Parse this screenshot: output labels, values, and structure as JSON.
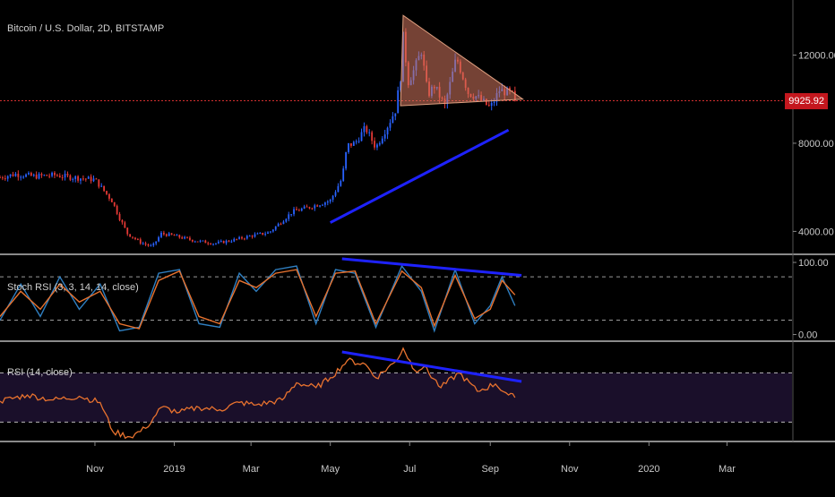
{
  "chart_data": [
    {
      "type": "candlestick",
      "title": "Bitcoin / U.S. Dollar, 2D, BITSTAMP",
      "y_ticks": [
        "12000.00",
        "8000.00",
        "4000.00"
      ],
      "y_tick_values": [
        12000,
        8000,
        4000
      ],
      "ylim": [
        3000,
        14500
      ],
      "current_price": "9925.92",
      "current_price_value": 9925.92,
      "x_labels": [
        "Nov",
        "2019",
        "Mar",
        "May",
        "Jul",
        "Sep",
        "Nov",
        "2020",
        "Mar"
      ],
      "x_label_dates": [
        "2018-11-01",
        "2019-01-01",
        "2019-03-01",
        "2019-05-01",
        "2019-07-01",
        "2019-09-01",
        "2019-11-01",
        "2020-01-01",
        "2020-03-01"
      ],
      "x_range": [
        "2018-08-20",
        "2020-04-20"
      ],
      "series": [
        {
          "close_points": [
            [
              "2018-08-20",
              6450
            ],
            [
              "2018-09-01",
              6600
            ],
            [
              "2018-09-15",
              6500
            ],
            [
              "2018-10-01",
              6550
            ],
            [
              "2018-10-15",
              6450
            ],
            [
              "2018-11-01",
              6350
            ],
            [
              "2018-11-14",
              5400
            ],
            [
              "2018-11-20",
              4600
            ],
            [
              "2018-11-26",
              3900
            ],
            [
              "2018-12-06",
              3500
            ],
            [
              "2018-12-15",
              3300
            ],
            [
              "2018-12-22",
              3900
            ],
            [
              "2019-01-01",
              3800
            ],
            [
              "2019-01-15",
              3600
            ],
            [
              "2019-02-01",
              3450
            ],
            [
              "2019-02-15",
              3600
            ],
            [
              "2019-03-01",
              3800
            ],
            [
              "2019-03-15",
              3950
            ],
            [
              "2019-04-02",
              4900
            ],
            [
              "2019-04-15",
              5100
            ],
            [
              "2019-05-01",
              5400
            ],
            [
              "2019-05-10",
              6400
            ],
            [
              "2019-05-14",
              7900
            ],
            [
              "2019-05-20",
              8000
            ],
            [
              "2019-05-28",
              8700
            ],
            [
              "2019-06-05",
              7800
            ],
            [
              "2019-06-15",
              8900
            ],
            [
              "2019-06-20",
              9500
            ],
            [
              "2019-06-24",
              11000
            ],
            [
              "2019-06-26",
              12800
            ],
            [
              "2019-06-30",
              10800
            ],
            [
              "2019-07-05",
              11400
            ],
            [
              "2019-07-10",
              12200
            ],
            [
              "2019-07-15",
              10200
            ],
            [
              "2019-07-20",
              10600
            ],
            [
              "2019-07-28",
              9700
            ],
            [
              "2019-08-06",
              11900
            ],
            [
              "2019-08-15",
              10300
            ],
            [
              "2019-08-22",
              10100
            ],
            [
              "2019-09-01",
              9600
            ],
            [
              "2019-09-08",
              10400
            ],
            [
              "2019-09-15",
              10300
            ],
            [
              "2019-09-18",
              10200
            ],
            [
              "2019-09-20",
              9925.92
            ]
          ]
        }
      ],
      "annotations": {
        "triangle": [
          [
            "2019-06-26",
            13800
          ],
          [
            "2019-06-24",
            9700
          ],
          [
            "2019-09-26",
            10000
          ]
        ],
        "support_line": [
          [
            "2019-05-01",
            4400
          ],
          [
            "2019-09-15",
            8600
          ]
        ]
      }
    },
    {
      "type": "line",
      "label": "Stoch RSI (3, 3, 14, 14, close)",
      "y_ticks": [
        "100.00",
        "0.00"
      ],
      "y_tick_values": [
        100,
        0
      ],
      "ylim": [
        -8,
        110
      ],
      "bands": [
        80,
        20
      ],
      "series": [
        {
          "color": "#2f7fc1",
          "points": [
            [
              "2018-08-20",
              20
            ],
            [
              "2018-09-05",
              70
            ],
            [
              "2018-09-20",
              25
            ],
            [
              "2018-10-05",
              80
            ],
            [
              "2018-10-20",
              35
            ],
            [
              "2018-11-05",
              70
            ],
            [
              "2018-11-20",
              5
            ],
            [
              "2018-12-05",
              10
            ],
            [
              "2018-12-20",
              85
            ],
            [
              "2019-01-05",
              90
            ],
            [
              "2019-01-20",
              15
            ],
            [
              "2019-02-05",
              10
            ],
            [
              "2019-02-20",
              85
            ],
            [
              "2019-03-05",
              60
            ],
            [
              "2019-03-20",
              90
            ],
            [
              "2019-04-05",
              95
            ],
            [
              "2019-04-20",
              15
            ],
            [
              "2019-05-05",
              90
            ],
            [
              "2019-05-20",
              85
            ],
            [
              "2019-06-05",
              10
            ],
            [
              "2019-06-25",
              95
            ],
            [
              "2019-07-10",
              60
            ],
            [
              "2019-07-20",
              5
            ],
            [
              "2019-08-05",
              90
            ],
            [
              "2019-08-20",
              15
            ],
            [
              "2019-09-01",
              40
            ],
            [
              "2019-09-10",
              80
            ],
            [
              "2019-09-20",
              40
            ]
          ]
        },
        {
          "color": "#e8722e",
          "points": [
            [
              "2018-08-20",
              25
            ],
            [
              "2018-09-05",
              60
            ],
            [
              "2018-09-20",
              35
            ],
            [
              "2018-10-05",
              70
            ],
            [
              "2018-10-20",
              45
            ],
            [
              "2018-11-05",
              60
            ],
            [
              "2018-11-20",
              15
            ],
            [
              "2018-12-05",
              8
            ],
            [
              "2018-12-20",
              75
            ],
            [
              "2019-01-05",
              88
            ],
            [
              "2019-01-20",
              25
            ],
            [
              "2019-02-05",
              15
            ],
            [
              "2019-02-20",
              75
            ],
            [
              "2019-03-05",
              65
            ],
            [
              "2019-03-20",
              85
            ],
            [
              "2019-04-05",
              90
            ],
            [
              "2019-04-20",
              25
            ],
            [
              "2019-05-05",
              85
            ],
            [
              "2019-05-20",
              88
            ],
            [
              "2019-06-05",
              15
            ],
            [
              "2019-06-25",
              88
            ],
            [
              "2019-07-10",
              65
            ],
            [
              "2019-07-20",
              12
            ],
            [
              "2019-08-05",
              82
            ],
            [
              "2019-08-20",
              22
            ],
            [
              "2019-09-01",
              35
            ],
            [
              "2019-09-10",
              75
            ],
            [
              "2019-09-20",
              55
            ]
          ]
        }
      ],
      "annotations": {
        "divergence_line": [
          [
            "2019-05-10",
            105
          ],
          [
            "2019-09-25",
            82
          ]
        ]
      }
    },
    {
      "type": "line",
      "label": "RSI (14, close)",
      "ylim": [
        15,
        95
      ],
      "bands": [
        70,
        30
      ],
      "series": [
        {
          "color": "#e8722e",
          "points": [
            [
              "2018-08-20",
              47
            ],
            [
              "2018-09-10",
              52
            ],
            [
              "2018-09-30",
              48
            ],
            [
              "2018-10-20",
              51
            ],
            [
              "2018-11-05",
              46
            ],
            [
              "2018-11-15",
              22
            ],
            [
              "2018-11-28",
              18
            ],
            [
              "2018-12-10",
              25
            ],
            [
              "2018-12-22",
              42
            ],
            [
              "2019-01-05",
              38
            ],
            [
              "2019-01-20",
              42
            ],
            [
              "2019-02-05",
              40
            ],
            [
              "2019-02-20",
              46
            ],
            [
              "2019-03-05",
              44
            ],
            [
              "2019-03-25",
              48
            ],
            [
              "2019-04-05",
              62
            ],
            [
              "2019-04-20",
              58
            ],
            [
              "2019-05-01",
              66
            ],
            [
              "2019-05-14",
              80
            ],
            [
              "2019-05-28",
              77
            ],
            [
              "2019-06-05",
              66
            ],
            [
              "2019-06-20",
              79
            ],
            [
              "2019-06-26",
              90
            ],
            [
              "2019-07-05",
              72
            ],
            [
              "2019-07-12",
              75
            ],
            [
              "2019-07-25",
              58
            ],
            [
              "2019-08-08",
              70
            ],
            [
              "2019-08-22",
              55
            ],
            [
              "2019-09-05",
              61
            ],
            [
              "2019-09-15",
              52
            ],
            [
              "2019-09-20",
              50
            ]
          ]
        }
      ],
      "annotations": {
        "divergence_line": [
          [
            "2019-05-10",
            87
          ],
          [
            "2019-09-25",
            63
          ]
        ]
      }
    }
  ]
}
